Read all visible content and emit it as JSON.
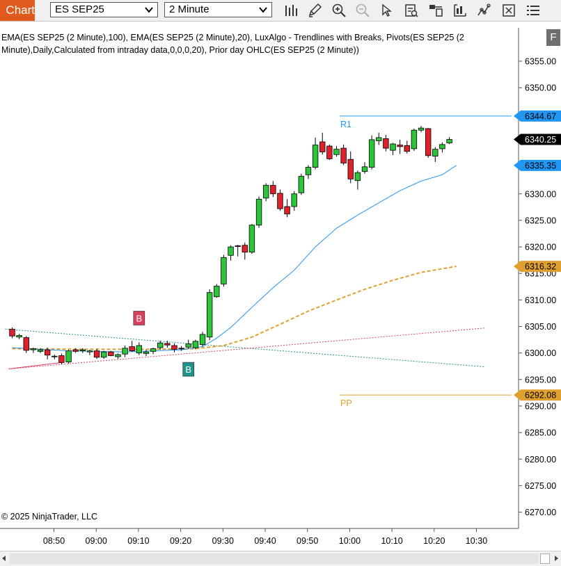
{
  "toolbar": {
    "chart_tab_label": "Chart",
    "instrument": "ES SEP25",
    "interval": "2 Minute",
    "buttons": [
      "bars-type-icon",
      "pencil-icon",
      "zoom-in-icon",
      "zoom-out-icon",
      "pointer-icon",
      "data-box-icon",
      "chart-trader-icon",
      "properties-icon",
      "indicators-icon",
      "strategies-icon",
      "menu-icon"
    ]
  },
  "chart": {
    "indicator_legend_line1": "EMA(ES SEP25 (2 Minute),100), EMA(ES SEP25 (2 Minute),20), LuxAlgo - Trendlines with Breaks, Pivots(ES SEP25 (2",
    "indicator_legend_line2": "Minute),Daily,Calculated from intraday data,0,0,0,20), Prior day OHLC(ES SEP25 (2 Minute))",
    "copyright": "© 2025 NinjaTrader, LLC",
    "f_button": "F",
    "price_labels": [
      "6355.00",
      "6350.00",
      "6345.00",
      "6340.00",
      "6335.00",
      "6330.00",
      "6325.00",
      "6320.00",
      "6315.00",
      "6310.00",
      "6305.00",
      "6300.00",
      "6295.00",
      "6290.00",
      "6285.00",
      "6280.00",
      "6275.00",
      "6270.00"
    ],
    "price_values": [
      6355,
      6350,
      6345,
      6340,
      6335,
      6330,
      6325,
      6320,
      6315,
      6310,
      6305,
      6300,
      6295,
      6290,
      6285,
      6280,
      6275,
      6270
    ],
    "time_labels": [
      "08:50",
      "09:00",
      "09:10",
      "09:20",
      "09:30",
      "09:40",
      "09:50",
      "10:00",
      "10:10",
      "10:20",
      "10:30"
    ],
    "markers": [
      {
        "value": "6344.67",
        "price": 6344.67,
        "color": "#2196f3"
      },
      {
        "value": "6340.25",
        "price": 6340.25,
        "color": "#000000"
      },
      {
        "value": "6335.35",
        "price": 6335.35,
        "color": "#2196f3"
      },
      {
        "value": "6316.32",
        "price": 6316.32,
        "color": "#e0a030"
      },
      {
        "value": "6292.08",
        "price": 6292.08,
        "color": "#e0a030"
      }
    ],
    "pivots": [
      {
        "label": "R1",
        "price": 6344.67,
        "color": "#2196f3"
      },
      {
        "label": "PP",
        "price": 6292.08,
        "color": "#e0a030"
      }
    ],
    "break_labels": [
      {
        "label": "B",
        "price": 6305.0,
        "bar": 18,
        "color": "#d94060",
        "position": "above"
      },
      {
        "label": "B",
        "price": 6298.5,
        "bar": 25,
        "color": "#20938a",
        "position": "below"
      }
    ],
    "candles": [
      [
        6304.5,
        6304.8,
        6302.8,
        6303.2
      ],
      [
        6303.0,
        6303.6,
        6302.6,
        6303.3
      ],
      [
        6302.9,
        6303.2,
        6300.0,
        6300.5
      ],
      [
        6300.6,
        6301.0,
        6300.0,
        6300.8
      ],
      [
        6300.3,
        6300.9,
        6300.0,
        6300.6
      ],
      [
        6300.6,
        6301.0,
        6298.8,
        6299.6
      ],
      [
        6299.3,
        6299.7,
        6298.8,
        6299.4
      ],
      [
        6299.5,
        6299.9,
        6297.9,
        6298.2
      ],
      [
        6298.3,
        6300.6,
        6298.0,
        6300.4
      ],
      [
        6300.6,
        6300.9,
        6300.0,
        6300.3
      ],
      [
        6300.4,
        6300.9,
        6300.0,
        6300.6
      ],
      [
        6300.2,
        6300.6,
        6299.6,
        6300.4
      ],
      [
        6300.4,
        6300.8,
        6298.9,
        6299.2
      ],
      [
        6299.2,
        6300.4,
        6298.9,
        6300.2
      ],
      [
        6300.2,
        6300.4,
        6299.4,
        6299.5
      ],
      [
        6299.3,
        6299.9,
        6298.9,
        6299.7
      ],
      [
        6299.8,
        6301.4,
        6299.2,
        6300.9
      ],
      [
        6301.2,
        6302.3,
        6300.2,
        6300.4
      ],
      [
        6300.0,
        6302.0,
        6299.6,
        6301.4
      ],
      [
        6299.9,
        6300.6,
        6299.4,
        6300.2
      ],
      [
        6300.3,
        6301.0,
        6299.8,
        6300.8
      ],
      [
        6301.0,
        6302.3,
        6300.6,
        6301.9
      ],
      [
        6301.8,
        6302.3,
        6301.0,
        6301.5
      ],
      [
        6301.4,
        6301.8,
        6300.1,
        6300.7
      ],
      [
        6300.8,
        6301.3,
        6300.4,
        6300.9
      ],
      [
        6301.1,
        6302.5,
        6300.8,
        6301.7
      ],
      [
        6301.0,
        6302.5,
        6300.7,
        6302.2
      ],
      [
        6301.6,
        6304.0,
        6301.2,
        6303.5
      ],
      [
        6303.0,
        6312.0,
        6302.4,
        6311.4
      ],
      [
        6310.6,
        6313.0,
        6310.4,
        6312.6
      ],
      [
        6313.0,
        6318.5,
        6312.5,
        6318.0
      ],
      [
        6318.4,
        6320.3,
        6317.4,
        6320.0
      ],
      [
        6320.2,
        6320.4,
        6318.2,
        6320.1
      ],
      [
        6320.3,
        6320.8,
        6317.6,
        6319.0
      ],
      [
        6319.0,
        6324.3,
        6318.7,
        6324.1
      ],
      [
        6324.1,
        6329.5,
        6323.6,
        6329.0
      ],
      [
        6329.2,
        6332.0,
        6328.6,
        6331.6
      ],
      [
        6331.6,
        6332.4,
        6329.4,
        6330.0
      ],
      [
        6330.1,
        6330.8,
        6326.8,
        6327.2
      ],
      [
        6327.6,
        6329.0,
        6325.6,
        6326.2
      ],
      [
        6327.6,
        6330.5,
        6326.8,
        6330.0
      ],
      [
        6330.2,
        6333.8,
        6329.8,
        6333.3
      ],
      [
        6333.6,
        6335.4,
        6332.8,
        6335.0
      ],
      [
        6335.0,
        6340.6,
        6334.6,
        6339.2
      ],
      [
        6339.8,
        6341.5,
        6337.4,
        6337.9
      ],
      [
        6339.0,
        6339.3,
        6336.4,
        6336.6
      ],
      [
        6337.4,
        6339.0,
        6337.0,
        6338.4
      ],
      [
        6338.6,
        6339.3,
        6335.4,
        6335.8
      ],
      [
        6336.5,
        6338.0,
        6332.0,
        6332.8
      ],
      [
        6332.5,
        6334.4,
        6330.8,
        6334.0
      ],
      [
        6334.2,
        6336.0,
        6333.8,
        6335.1
      ],
      [
        6335.0,
        6341.0,
        6334.6,
        6340.2
      ],
      [
        6340.0,
        6341.5,
        6339.2,
        6340.6
      ],
      [
        6340.4,
        6341.1,
        6338.0,
        6338.6
      ],
      [
        6338.2,
        6339.6,
        6337.3,
        6339.4
      ],
      [
        6339.2,
        6340.2,
        6337.5,
        6338.9
      ],
      [
        6339.1,
        6340.0,
        6337.6,
        6338.0
      ],
      [
        6338.5,
        6342.3,
        6338.1,
        6342.0
      ],
      [
        6342.0,
        6342.8,
        6341.6,
        6342.4
      ],
      [
        6342.3,
        6342.4,
        6336.8,
        6337.2
      ],
      [
        6337.1,
        6338.8,
        6336.0,
        6338.4
      ],
      [
        6338.5,
        6339.7,
        6337.8,
        6339.3
      ],
      [
        6339.6,
        6340.7,
        6339.4,
        6340.25
      ]
    ],
    "ema20": [
      [
        0,
        6301.0
      ],
      [
        8,
        6300.4
      ],
      [
        16,
        6300.2
      ],
      [
        24,
        6300.6
      ],
      [
        27,
        6301.2
      ],
      [
        29,
        6302.8
      ],
      [
        31,
        6304.8
      ],
      [
        34,
        6308.6
      ],
      [
        37,
        6312.3
      ],
      [
        40,
        6315.6
      ],
      [
        43,
        6320.0
      ],
      [
        46,
        6323.5
      ],
      [
        49,
        6326.0
      ],
      [
        52,
        6328.3
      ],
      [
        55,
        6330.6
      ],
      [
        58,
        6332.4
      ],
      [
        61,
        6333.6
      ],
      [
        63,
        6335.35
      ]
    ],
    "ema100": [
      [
        0,
        6300.8
      ],
      [
        10,
        6300.7
      ],
      [
        20,
        6300.7
      ],
      [
        26,
        6300.8
      ],
      [
        30,
        6301.4
      ],
      [
        34,
        6303.0
      ],
      [
        38,
        6305.4
      ],
      [
        42,
        6307.9
      ],
      [
        46,
        6310.0
      ],
      [
        50,
        6312.0
      ],
      [
        54,
        6313.7
      ],
      [
        58,
        6315.2
      ],
      [
        63,
        6316.32
      ]
    ],
    "trendline_down": {
      "start_bar": -1,
      "start_price": 6304.5,
      "end_bar": 67,
      "end_price": 6297.4,
      "color": "#20938a"
    },
    "trendline_up": {
      "start_bar": -0.5,
      "start_price": 6297.0,
      "end_bar": 67,
      "end_price": 6304.7,
      "color": "#d94060"
    },
    "trendline_up_short": {
      "start_bar": -0.5,
      "start_price": 6297.0,
      "end_bar": 7,
      "end_price": 6298.2,
      "color": "#d94060"
    }
  }
}
